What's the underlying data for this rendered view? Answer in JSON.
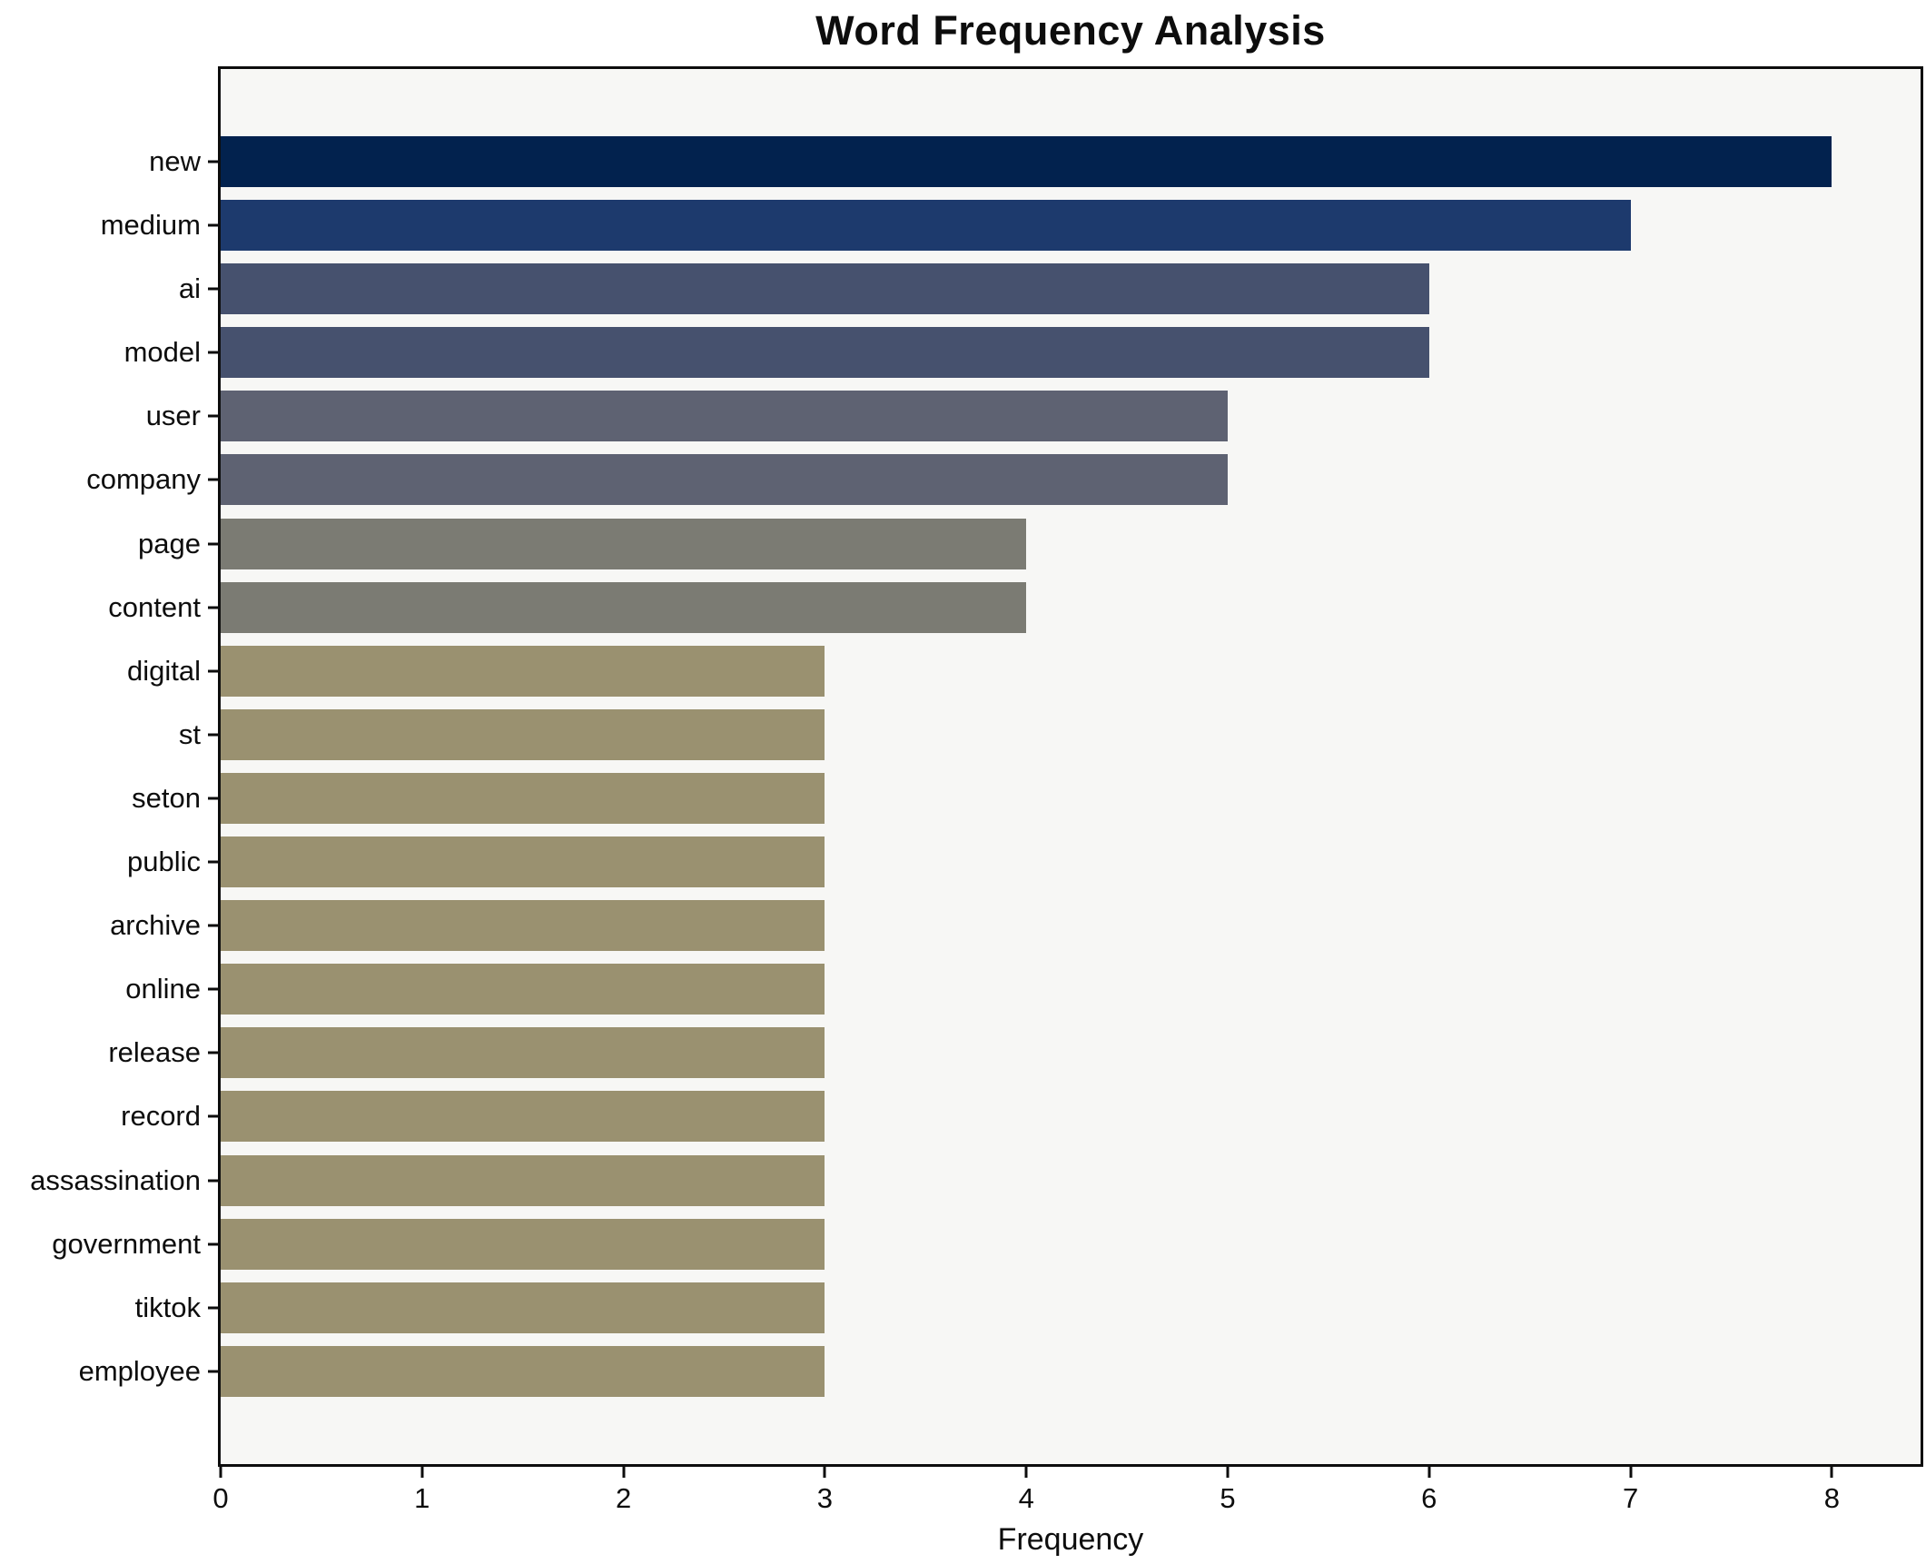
{
  "chart": {
    "title": "Word Frequency Analysis",
    "xlabel": "Frequency"
  },
  "chart_data": {
    "type": "bar",
    "orientation": "horizontal",
    "title": "Word Frequency Analysis",
    "xlabel": "Frequency",
    "ylabel": "",
    "categories": [
      "new",
      "medium",
      "ai",
      "model",
      "user",
      "company",
      "page",
      "content",
      "digital",
      "st",
      "seton",
      "public",
      "archive",
      "online",
      "release",
      "record",
      "assassination",
      "government",
      "tiktok",
      "employee"
    ],
    "values": [
      8,
      7,
      6,
      6,
      5,
      5,
      4,
      4,
      3,
      3,
      3,
      3,
      3,
      3,
      3,
      3,
      3,
      3,
      3,
      3
    ],
    "x_ticks": [
      0,
      1,
      2,
      3,
      4,
      5,
      6,
      7,
      8
    ],
    "xlim": [
      0,
      8.44
    ],
    "grid": false,
    "legend_position": "none",
    "bar_colors": [
      "#02224e",
      "#1d3a6d",
      "#46516e",
      "#46516e",
      "#5e6272",
      "#5e6272",
      "#7b7b73",
      "#7b7b73",
      "#9a9170",
      "#9a9170",
      "#9a9170",
      "#9a9170",
      "#9a9170",
      "#9a9170",
      "#9a9170",
      "#9a9170",
      "#9a9170",
      "#9a9170",
      "#9a9170",
      "#9a9170"
    ],
    "plot_background": "#f7f7f5",
    "figure_background": "#ffffff",
    "axis_color": "#0d0d0d"
  }
}
